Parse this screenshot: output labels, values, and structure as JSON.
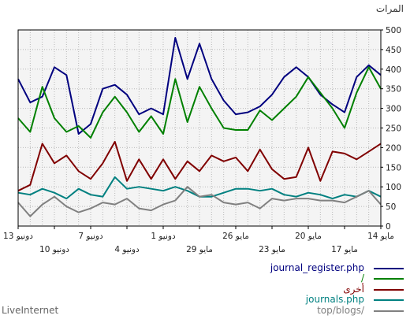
{
  "chart_data": {
    "type": "line",
    "ylabel": "المرات",
    "ylim": [
      0,
      500
    ],
    "yticks": [
      0,
      50,
      100,
      150,
      200,
      250,
      300,
      350,
      400,
      450,
      500
    ],
    "x_tick_labels": [
      {
        "label": "14 مايو",
        "row": 1,
        "index": 0
      },
      {
        "label": "17 مايو",
        "row": 2,
        "index": 3
      },
      {
        "label": "20 مايو",
        "row": 1,
        "index": 6
      },
      {
        "label": "23 مايو",
        "row": 2,
        "index": 9
      },
      {
        "label": "26 مايو",
        "row": 1,
        "index": 12
      },
      {
        "label": "29 مايو",
        "row": 2,
        "index": 15
      },
      {
        "label": "1 دونيو",
        "row": 1,
        "index": 18
      },
      {
        "label": "4 دونيو",
        "row": 2,
        "index": 21
      },
      {
        "label": "7 دونيو",
        "row": 1,
        "index": 24
      },
      {
        "label": "10 دونيو",
        "row": 2,
        "index": 27
      },
      {
        "label": "13 دونيو",
        "row": 1,
        "index": 30
      }
    ],
    "grid": true,
    "x_direction": "right-to-left",
    "series": [
      {
        "name": "journal_register.php",
        "color": "#00007f",
        "values": [
          385,
          410,
          380,
          290,
          310,
          335,
          380,
          405,
          380,
          335,
          305,
          290,
          285,
          320,
          375,
          465,
          375,
          480,
          285,
          300,
          285,
          335,
          360,
          350,
          260,
          235,
          385,
          405,
          330,
          315,
          375
        ]
      },
      {
        "name": "/",
        "color": "#008000",
        "values": [
          350,
          405,
          340,
          250,
          300,
          340,
          380,
          330,
          300,
          270,
          295,
          245,
          245,
          250,
          300,
          355,
          265,
          375,
          235,
          280,
          240,
          290,
          330,
          290,
          225,
          255,
          240,
          275,
          355,
          240,
          275
        ]
      },
      {
        "name": "أخرى",
        "color": "#800000",
        "values": [
          210,
          190,
          170,
          185,
          190,
          115,
          200,
          125,
          120,
          145,
          195,
          140,
          175,
          165,
          180,
          140,
          165,
          120,
          170,
          120,
          170,
          115,
          215,
          160,
          120,
          140,
          180,
          160,
          210,
          105,
          90
        ]
      },
      {
        "name": "journals.php",
        "color": "#008080",
        "values": [
          75,
          90,
          75,
          80,
          70,
          80,
          85,
          75,
          80,
          95,
          90,
          95,
          95,
          85,
          75,
          75,
          90,
          100,
          90,
          95,
          100,
          95,
          125,
          75,
          80,
          95,
          70,
          85,
          95,
          80,
          85
        ]
      },
      {
        "name": "top/blogs/",
        "color": "#808080",
        "values": [
          55,
          90,
          75,
          60,
          65,
          65,
          70,
          70,
          65,
          70,
          45,
          60,
          55,
          60,
          80,
          75,
          100,
          65,
          55,
          40,
          45,
          70,
          55,
          60,
          45,
          35,
          50,
          75,
          55,
          25,
          60
        ]
      }
    ]
  },
  "footer": {
    "brand": "LiveInternet"
  }
}
